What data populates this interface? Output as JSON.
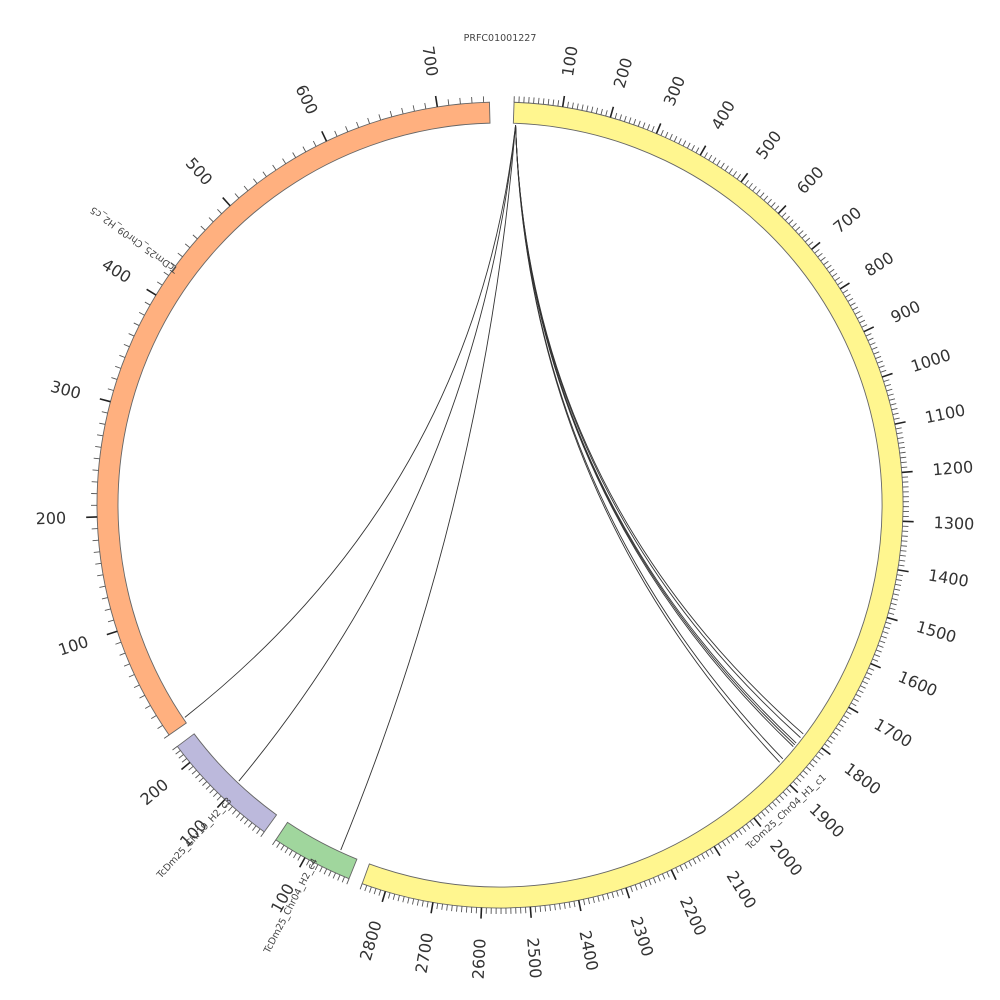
{
  "title": "PRFC01001227",
  "colors": {
    "chr04_c1": "#fff68f",
    "chr09_c5": "#ffb07f",
    "chr19_c3": "#bcb9dc",
    "chr04_c4": "#a0d69d",
    "outline": "#666666",
    "tick": "#555555",
    "link": "#333333"
  },
  "chart_data": {
    "type": "circos",
    "segments": [
      {
        "id": "c1",
        "name": "TcDm25_Chr04_H1_c1",
        "length": 2850,
        "color": "#fff68f",
        "label_ticks": [
          100,
          200,
          300,
          400,
          500,
          600,
          700,
          800,
          900,
          1000,
          1100,
          1200,
          1300,
          1400,
          1500,
          1600,
          1700,
          1800,
          1900,
          2000,
          2100,
          2200,
          2300,
          2400,
          2500,
          2600,
          2700,
          2800
        ]
      },
      {
        "id": "c4",
        "name": "TcDm25_Chr04_H2_c4",
        "length": 170,
        "color": "#a0d69d",
        "label_ticks": [
          100
        ]
      },
      {
        "id": "c3",
        "name": "TcDm25_Chr19_H2_c3",
        "length": 240,
        "color": "#bcb9dc",
        "label_ticks": [
          100,
          200
        ]
      },
      {
        "id": "c5",
        "name": "TcDm25_Chr09_H2_c5",
        "length": 745,
        "color": "#ffb07f",
        "label_ticks": [
          100,
          200,
          300,
          400,
          500,
          600,
          700
        ]
      }
    ],
    "links": [
      {
        "from": "c1",
        "from_pos": 5,
        "to": "c5",
        "to_pos": 5
      },
      {
        "from": "c1",
        "from_pos": 5,
        "to": "c3",
        "to_pos": 105
      },
      {
        "from": "c1",
        "from_pos": 5,
        "to": "c4",
        "to_pos": 40
      },
      {
        "from": "c1",
        "from_pos": 5,
        "to": "c1",
        "to_pos": 1880
      },
      {
        "from": "c1",
        "from_pos": 5,
        "to": "c1",
        "to_pos": 1870
      },
      {
        "from": "c1",
        "from_pos": 5,
        "to": "c1",
        "to_pos": 1835
      },
      {
        "from": "c1",
        "from_pos": 5,
        "to": "c1",
        "to_pos": 1830
      },
      {
        "from": "c1",
        "from_pos": 5,
        "to": "c1",
        "to_pos": 1825
      },
      {
        "from": "c1",
        "from_pos": 5,
        "to": "c1",
        "to_pos": 1810
      },
      {
        "from": "c1",
        "from_pos": 5,
        "to": "c1",
        "to_pos": 1800
      }
    ]
  }
}
